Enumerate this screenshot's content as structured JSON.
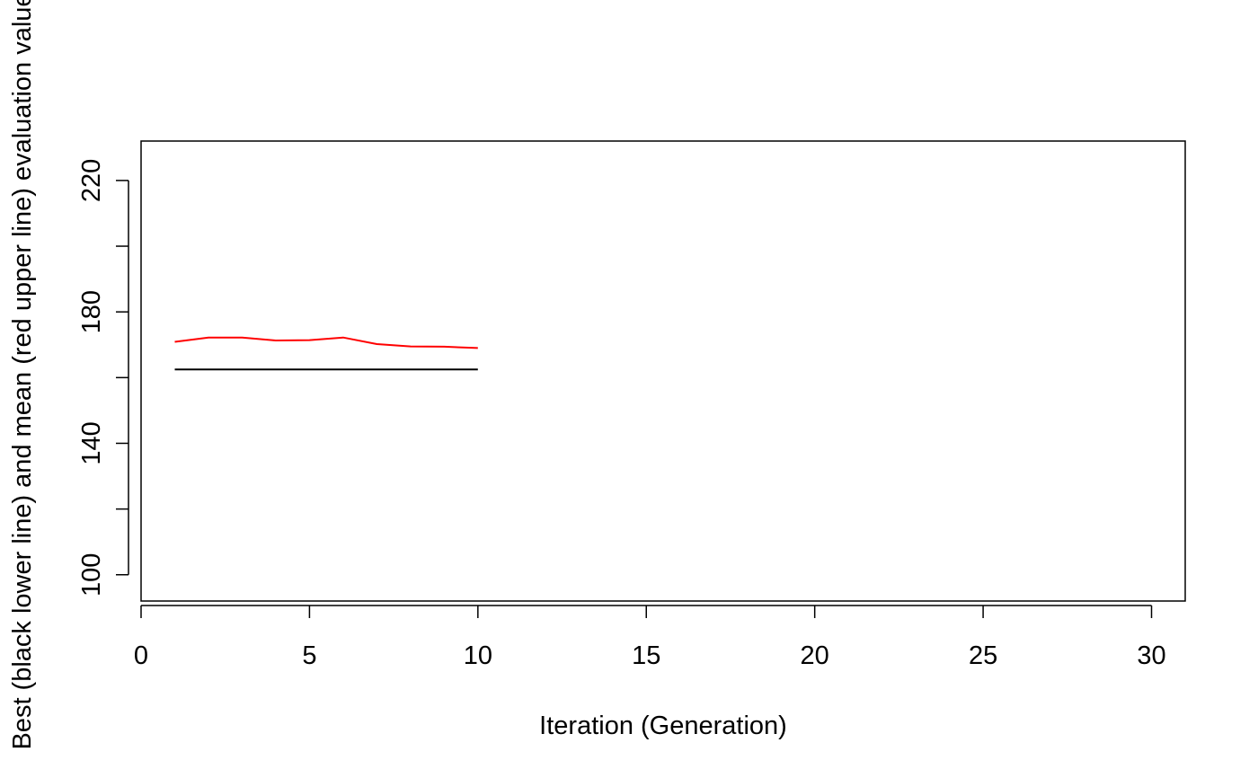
{
  "chart_data": {
    "type": "line",
    "title": "",
    "xlabel": "Iteration (Generation)",
    "ylabel": "Best (black lower line) and mean (red upper line) evaluation value",
    "xlim": [
      0,
      31
    ],
    "ylim": [
      92,
      232
    ],
    "x_ticks": [
      0,
      5,
      10,
      15,
      20,
      25,
      30
    ],
    "y_ticks": [
      100,
      120,
      140,
      160,
      180,
      200,
      220
    ],
    "y_tick_labels": [
      "100",
      "",
      "140",
      "",
      "180",
      "",
      "220"
    ],
    "grid": false,
    "legend": "none",
    "series": [
      {
        "color": "#ff0000",
        "x": [
          1,
          2,
          3,
          4,
          5,
          6,
          7,
          8,
          9,
          10
        ],
        "values": [
          170.9,
          172.2,
          172.2,
          171.3,
          171.4,
          172.2,
          170.2,
          169.5,
          169.4,
          169.0
        ]
      },
      {
        "color": "#000000",
        "x": [
          1,
          2,
          3,
          4,
          5,
          6,
          7,
          8,
          9,
          10
        ],
        "values": [
          162.5,
          162.5,
          162.5,
          162.5,
          162.5,
          162.5,
          162.5,
          162.5,
          162.5,
          162.5
        ]
      }
    ]
  }
}
